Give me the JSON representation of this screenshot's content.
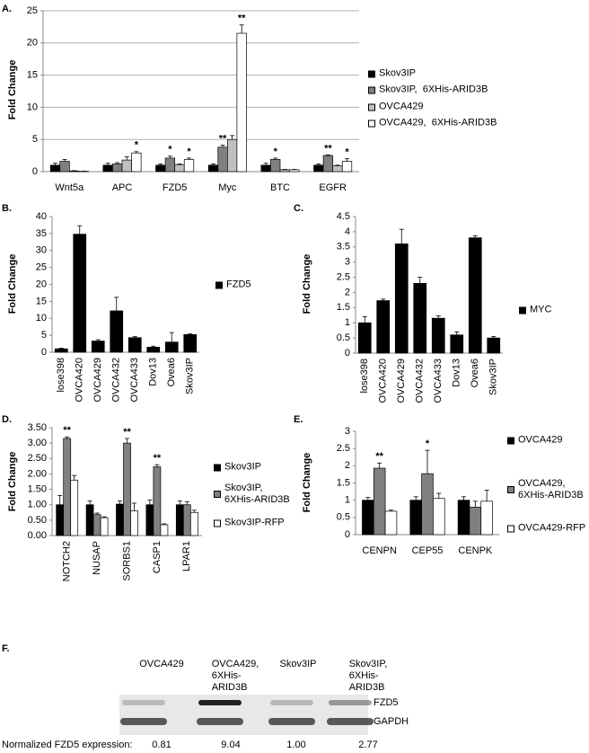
{
  "chart_data": [
    {
      "type": "bar",
      "panel": "A.",
      "ylabel": "Fold Change",
      "grid": true,
      "categories": [
        "Wnt5a",
        "APC",
        "FZD5",
        "Myc",
        "BTC",
        "EGFR"
      ],
      "ylim": [
        0,
        25
      ],
      "yticks": [
        0,
        5,
        10,
        15,
        20,
        25
      ],
      "series": [
        {
          "name": "Skov3IP",
          "color": "#000000",
          "values": [
            1,
            1,
            1,
            1,
            1,
            1
          ],
          "errors": [
            0.3,
            0.3,
            0.2,
            0.2,
            0.3,
            0.2
          ],
          "significance": [
            null,
            null,
            null,
            null,
            null,
            null
          ]
        },
        {
          "name": "Skov3IP,  6XHis-ARID3B",
          "color": "#808080",
          "values": [
            1.6,
            1.2,
            2.1,
            3.8,
            1.9,
            2.5
          ],
          "errors": [
            0.3,
            0.2,
            0.3,
            0.3,
            0.2,
            0.1
          ],
          "significance": [
            null,
            null,
            "*",
            "**",
            "*",
            "**"
          ]
        },
        {
          "name": "OVCA429",
          "color": "#c0c0c0",
          "values": [
            0.1,
            1.8,
            1.1,
            5.0,
            0.3,
            0.9
          ],
          "errors": [
            0.05,
            0.5,
            0.1,
            0.6,
            0.05,
            0.1
          ],
          "significance": [
            null,
            null,
            null,
            null,
            null,
            null
          ]
        },
        {
          "name": "OVCA429,  6XHis-ARID3B",
          "color": "#ffffff",
          "values": [
            0.05,
            2.9,
            1.9,
            21.5,
            0.3,
            1.6
          ],
          "errors": [
            0.02,
            0.2,
            0.2,
            1.3,
            0.05,
            0.4
          ],
          "significance": [
            null,
            "*",
            "*",
            "**",
            null,
            "*"
          ]
        }
      ]
    },
    {
      "type": "bar",
      "panel": "B.",
      "ylabel": "Fold Change",
      "grid": false,
      "categories": [
        "lose398",
        "OVCA420",
        "OVCA429",
        "OVCA432",
        "OVCA433",
        "Dov13",
        "Ovea6",
        "Skov3IP"
      ],
      "ylim": [
        0,
        40
      ],
      "yticks": [
        0,
        5,
        10,
        15,
        20,
        25,
        30,
        35,
        40
      ],
      "series": [
        {
          "name": "FZD5",
          "color": "#000000",
          "values": [
            1,
            34.8,
            3.3,
            12.2,
            4.3,
            1.5,
            3,
            5.2
          ],
          "errors": [
            0.2,
            2.5,
            0.4,
            4,
            0.3,
            0.3,
            2.8,
            0.2
          ]
        }
      ]
    },
    {
      "type": "bar",
      "panel": "C.",
      "ylabel": "Fold Change",
      "grid": false,
      "categories": [
        "lose398",
        "OVCA420",
        "OVCA429",
        "OVCA432",
        "OVCA433",
        "Dov13",
        "Ovea6",
        "Skov3IP"
      ],
      "ylim": [
        0,
        4.5
      ],
      "yticks": [
        0,
        0.5,
        1,
        1.5,
        2,
        2.5,
        3,
        3.5,
        4,
        4.5
      ],
      "series": [
        {
          "name": "MYC",
          "color": "#000000",
          "values": [
            1,
            1.73,
            3.6,
            2.3,
            1.15,
            0.6,
            3.8,
            0.5
          ],
          "errors": [
            0.2,
            0.05,
            0.48,
            0.2,
            0.08,
            0.1,
            0.07,
            0.05
          ]
        }
      ]
    },
    {
      "type": "bar",
      "panel": "D.",
      "ylabel": "Fold Change",
      "grid": false,
      "categories": [
        "NOTCH2",
        "NUSAP",
        "SORBS1",
        "CASP1",
        "LPAR1"
      ],
      "ylim": [
        0,
        3.5
      ],
      "yticks": [
        {
          "value": 0,
          "label": "0.00"
        },
        {
          "value": 0.5,
          "label": "0.50"
        },
        {
          "value": 1,
          "label": "1.00"
        },
        {
          "value": 1.5,
          "label": "1.50"
        },
        {
          "value": 2,
          "label": "2.00"
        },
        {
          "value": 2.5,
          "label": "2.50"
        },
        {
          "value": 3,
          "label": "3.00"
        },
        {
          "value": 3.5,
          "label": "3.50"
        }
      ],
      "series": [
        {
          "name": "Skov3IP",
          "color": "#000000",
          "values": [
            1.0,
            1.0,
            1.02,
            1.0,
            1.0
          ],
          "errors": [
            0.3,
            0.12,
            0.1,
            0.15,
            0.12
          ],
          "significance": [
            null,
            null,
            null,
            null,
            null
          ]
        },
        {
          "name": "Skov3IP,\n6XHis-ARID3B",
          "color": "#808080",
          "values": [
            3.15,
            0.68,
            3.0,
            2.23,
            1.0
          ],
          "errors": [
            0.05,
            0.05,
            0.15,
            0.07,
            0.1
          ],
          "significance": [
            "**",
            null,
            "**",
            "**",
            null
          ]
        },
        {
          "name": "Skov3IP-RFP",
          "color": "#ffffff",
          "values": [
            1.8,
            0.58,
            0.8,
            0.35,
            0.75
          ],
          "errors": [
            0.15,
            0.03,
            0.25,
            0.03,
            0.07
          ],
          "significance": [
            null,
            null,
            null,
            null,
            null
          ]
        }
      ]
    },
    {
      "type": "bar",
      "panel": "E.",
      "ylabel": "Fold Change",
      "grid": false,
      "categories": [
        "CENPN",
        "CEP55",
        "CENPK"
      ],
      "ylim": [
        0,
        3
      ],
      "yticks": [
        0,
        0.5,
        1,
        1.5,
        2,
        2.5,
        3
      ],
      "series": [
        {
          "name": "OVCA429",
          "color": "#000000",
          "values": [
            1.0,
            1.0,
            1.0
          ],
          "errors": [
            0.08,
            0.1,
            0.1
          ],
          "significance": [
            null,
            null,
            null
          ]
        },
        {
          "name": "OVCA429,\n6XHis-ARID3B",
          "color": "#808080",
          "values": [
            1.93,
            1.77,
            0.8
          ],
          "errors": [
            0.15,
            0.68,
            0.17
          ],
          "significance": [
            "**",
            "*",
            null
          ]
        },
        {
          "name": "OVCA429-RFP",
          "color": "#ffffff",
          "values": [
            0.68,
            1.05,
            0.97
          ],
          "errors": [
            0.03,
            0.15,
            0.32
          ],
          "significance": [
            null,
            null,
            null
          ]
        }
      ]
    }
  ],
  "blot": {
    "panel": "F.",
    "lanes": [
      "OVCA429",
      "OVCA429,\n6XHis-\nARID3B",
      "Skov3IP",
      "Skov3IP,\n6XHis-\nARID3B"
    ],
    "bands": [
      "FZD5",
      "GAPDH"
    ],
    "quantification": {
      "label": "Normalized FZD5 expression:",
      "values": [
        0.81,
        9.04,
        {
          "value": 1,
          "label": "1.00"
        },
        2.77
      ]
    }
  }
}
